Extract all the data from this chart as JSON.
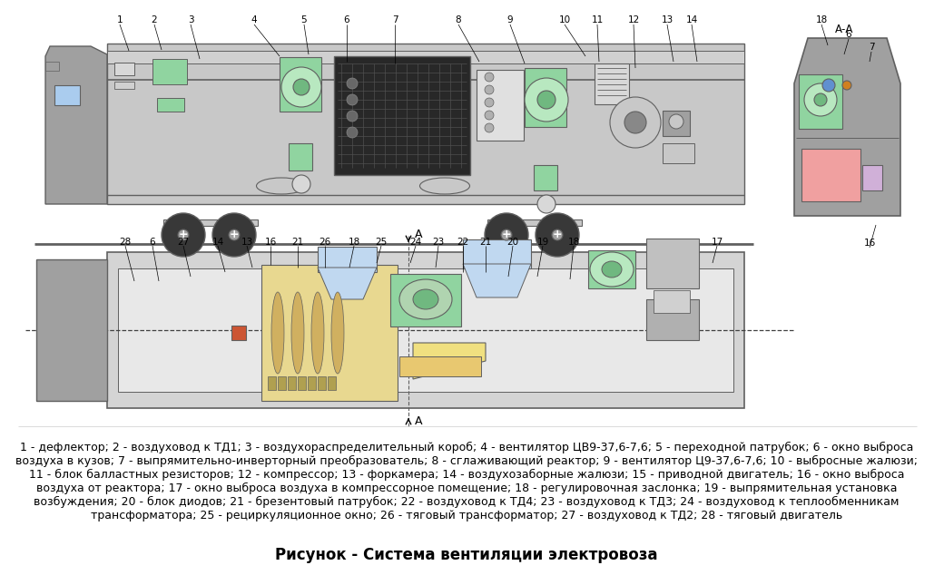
{
  "background_color": "#ffffff",
  "title": "Рисунок - Система вентиляции электровоза",
  "title_fontsize": 12,
  "description_lines": [
    "1 - дефлектор; 2 - воздуховод к ТД1; 3 - воздухораспределительный короб; 4 - вентилятор ЦВ9-37,6-7,6; 5 - переходной патрубок; 6 - окно выброса",
    "воздуха в кузов; 7 - выпрямительно-инверторный преобразователь; 8 - сглаживающий реактор; 9 - вентилятор Ц9-37,6-7,6; 10 - выбросные жалюзи;",
    "11 - блок балластных резисторов; 12 - компрессор; 13 - форкамера; 14 - воздухозаборные жалюзи; 15 - приводной двигатель; 16 - окно выброса",
    "воздуха от реактора; 17 - окно выброса воздуха в компрессорное помещение; 18 - регулировочная заслонка; 19 - выпрямительная установка",
    "возбуждения; 20 - блок диодов; 21 - брезентовый патрубок; 22 - воздуховод к ТД4; 23 - воздуховод к ТД3; 24 - воздуховод к теплообменникам",
    "трансформатора; 25 - рециркуляционное окно; 26 - тяговый трансформатор; 27 - воздуховод к ТД2; 28 - тяговый двигатель"
  ],
  "desc_fontsize": 9.0,
  "colors": {
    "gray_body": "#a0a0a0",
    "light_gray": "#c8c8c8",
    "dark_gray": "#606060",
    "green_part": "#90d4a0",
    "light_green": "#b8e8c0",
    "dark_green": "#70b880",
    "light_blue": "#c0d8f0",
    "pink_part": "#f0a0a0",
    "yellow_part": "#f0e080",
    "lilac_part": "#d0b0d8",
    "black": "#000000",
    "white": "#ffffff",
    "inv_dark": "#282828",
    "mid_gray": "#888888",
    "rail_color": "#404040"
  }
}
